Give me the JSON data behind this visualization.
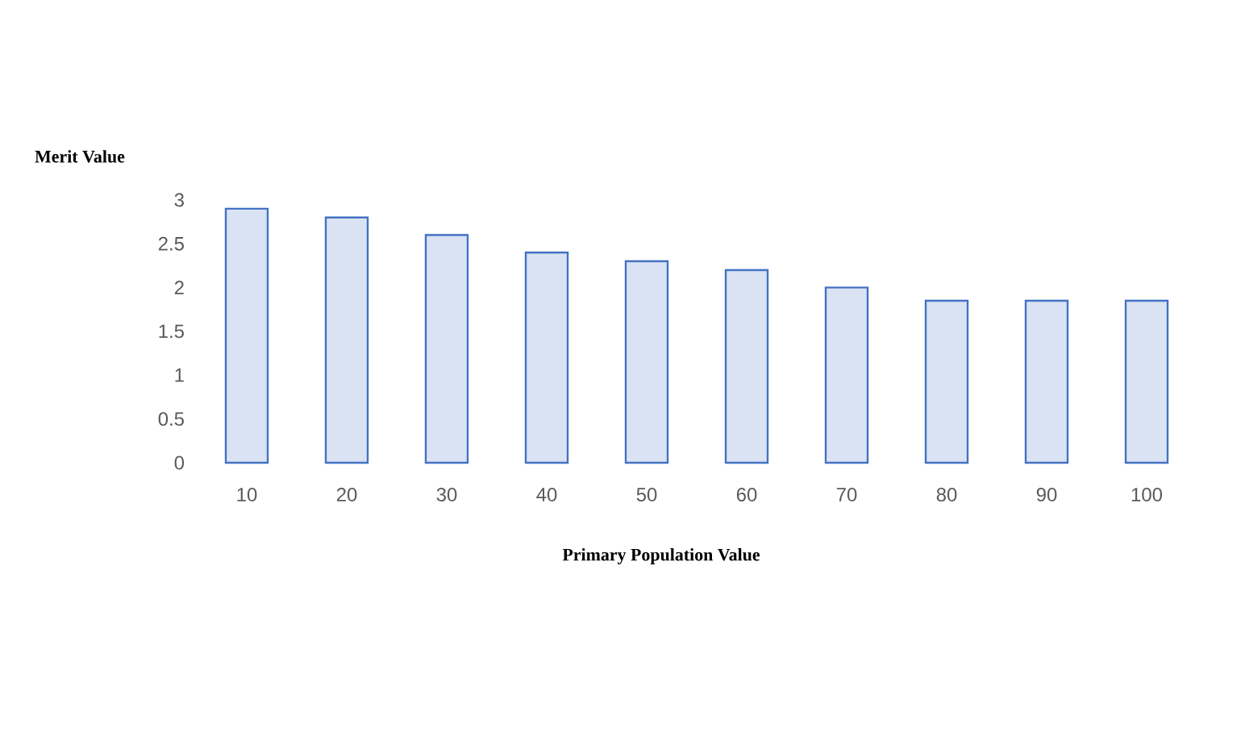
{
  "chart_data": {
    "type": "bar",
    "xlabel": "Primary Population Value",
    "ylabel": "Merit Value",
    "categories": [
      "10",
      "20",
      "30",
      "40",
      "50",
      "60",
      "70",
      "80",
      "90",
      "100"
    ],
    "values": [
      2.9,
      2.8,
      2.6,
      2.4,
      2.3,
      2.2,
      2.0,
      1.85,
      1.85,
      1.85
    ],
    "color": "#4472c4",
    "ylim": [
      0,
      3
    ],
    "yticks": [
      0,
      0.5,
      1,
      1.5,
      2,
      2.5,
      3
    ]
  }
}
